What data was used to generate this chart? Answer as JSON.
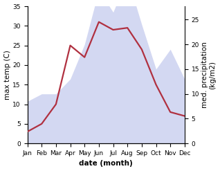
{
  "months": [
    "Jan",
    "Feb",
    "Mar",
    "Apr",
    "May",
    "Jun",
    "Jul",
    "Aug",
    "Sep",
    "Oct",
    "Nov",
    "Dec"
  ],
  "temperature": [
    3,
    5,
    10,
    25,
    22,
    31,
    29,
    29.5,
    24,
    15,
    8,
    7
  ],
  "precipitation": [
    8.5,
    10,
    10,
    13,
    20,
    31,
    26.5,
    33.5,
    24,
    15,
    19,
    13
  ],
  "temp_ylim": [
    0,
    35
  ],
  "precip_ylim": [
    0,
    27.7
  ],
  "temp_yticks": [
    0,
    5,
    10,
    15,
    20,
    25,
    30,
    35
  ],
  "precip_yticks": [
    0,
    5,
    10,
    15,
    20,
    25
  ],
  "xlabel": "date (month)",
  "ylabel_left": "max temp (C)",
  "ylabel_right": "med. precipitation\n(kg/m2)",
  "fill_color": "#b0b8e8",
  "fill_alpha": 0.55,
  "line_color": "#b03040",
  "line_width": 1.6,
  "label_fontsize": 7.5,
  "tick_fontsize": 6.5
}
